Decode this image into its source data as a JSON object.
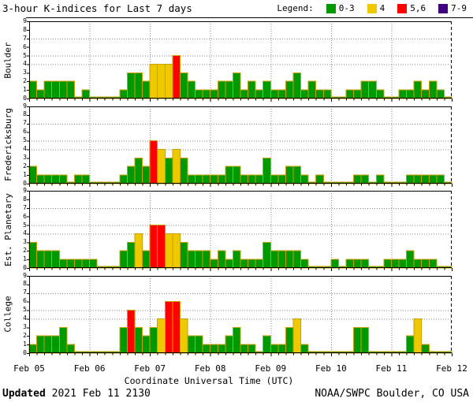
{
  "title": "3-hour K-indices for Last 7 days",
  "legend": {
    "label": "Legend:",
    "items": [
      {
        "label": "0-3",
        "color": "#009900"
      },
      {
        "label": "4",
        "color": "#eec900"
      },
      {
        "label": "5,6",
        "color": "#ff0000"
      },
      {
        "label": "7-9",
        "color": "#400080"
      }
    ]
  },
  "footer": {
    "updated_label": "Updated",
    "updated_value": " 2021 Feb 11 2130",
    "credit": "NOAA/SWPC Boulder, CO USA"
  },
  "chart_data": {
    "type": "bar",
    "title": "3-hour K-indices for Last 7 days",
    "xlabel": "Coordinate Universal Time (UTC)",
    "x_day_labels": [
      "Feb 05",
      "Feb 06",
      "Feb 07",
      "Feb 08",
      "Feb 09",
      "Feb 10",
      "Feb 11",
      "Feb 12"
    ],
    "hours_per_bar": 3,
    "bars_per_day": 8,
    "ylim": [
      0,
      9
    ],
    "y_ticks": [
      0,
      1,
      2,
      3,
      4,
      5,
      6,
      7,
      8,
      9
    ],
    "h_gridlines": [
      4,
      5,
      7
    ],
    "grid": "dotted",
    "legend_position": "top-right",
    "color_map": {
      "0-3": "#009900",
      "4": "#eec900",
      "5,6": "#ff0000",
      "7-9": "#400080"
    },
    "bar_outline_color": "#cc9f00",
    "series": [
      {
        "name": "Boulder",
        "values": [
          2,
          1,
          2,
          2,
          2,
          2,
          0,
          1,
          0,
          0,
          0,
          0,
          1,
          3,
          3,
          2,
          4,
          4,
          4,
          5,
          3,
          2,
          1,
          1,
          1,
          2,
          2,
          3,
          1,
          2,
          1,
          2,
          1,
          1,
          2,
          3,
          1,
          2,
          1,
          1,
          0,
          0,
          1,
          1,
          2,
          2,
          1,
          0,
          0,
          1,
          1,
          2,
          1,
          2,
          1,
          0
        ]
      },
      {
        "name": "Fredericksburg",
        "values": [
          2,
          1,
          1,
          1,
          1,
          0,
          1,
          1,
          0,
          0,
          0,
          0,
          1,
          2,
          3,
          2,
          5,
          4,
          3,
          4,
          3,
          1,
          1,
          1,
          1,
          1,
          2,
          2,
          1,
          1,
          1,
          3,
          1,
          1,
          2,
          2,
          1,
          0,
          1,
          0,
          0,
          0,
          0,
          1,
          1,
          0,
          1,
          0,
          0,
          0,
          1,
          1,
          1,
          1,
          1,
          0
        ]
      },
      {
        "name": "Est. Planetary",
        "values": [
          3,
          2,
          2,
          2,
          1,
          1,
          1,
          1,
          1,
          0,
          0,
          0,
          2,
          3,
          4,
          2,
          5,
          5,
          4,
          4,
          3,
          2,
          2,
          2,
          1,
          2,
          1,
          2,
          1,
          1,
          1,
          3,
          2,
          2,
          2,
          2,
          1,
          0,
          0,
          0,
          1,
          0,
          1,
          1,
          1,
          0,
          0,
          1,
          1,
          1,
          2,
          1,
          1,
          1,
          0,
          0
        ]
      },
      {
        "name": "College",
        "values": [
          1,
          2,
          2,
          2,
          3,
          1,
          0,
          0,
          0,
          0,
          0,
          0,
          3,
          5,
          3,
          2,
          3,
          4,
          6,
          6,
          4,
          2,
          2,
          1,
          1,
          1,
          2,
          3,
          1,
          1,
          0,
          2,
          1,
          1,
          3,
          4,
          1,
          0,
          0,
          0,
          0,
          0,
          0,
          3,
          3,
          0,
          0,
          0,
          0,
          0,
          2,
          4,
          1,
          0,
          0,
          0
        ]
      }
    ]
  }
}
